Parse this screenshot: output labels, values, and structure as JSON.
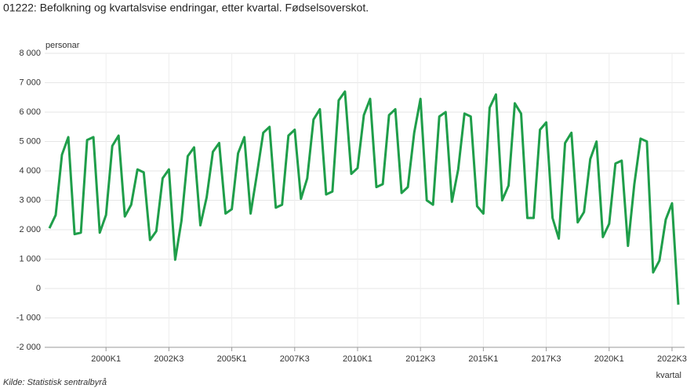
{
  "chart_data": {
    "type": "line",
    "title": "01222: Befolkning og kvartalsvise endringar, etter kvartal. Fødselsoverskot.",
    "y_label": "personar",
    "x_label": "kvartal",
    "source": "Kilde:  Statistisk sentralbyrå",
    "categories": [
      null,
      null,
      null,
      null,
      null,
      null,
      null,
      null,
      null,
      "2000K1",
      null,
      null,
      null,
      null,
      null,
      null,
      null,
      null,
      null,
      "2002K3",
      null,
      null,
      null,
      null,
      null,
      null,
      null,
      null,
      null,
      "2005K1",
      null,
      null,
      null,
      null,
      null,
      null,
      null,
      null,
      null,
      "2007K3",
      null,
      null,
      null,
      null,
      null,
      null,
      null,
      null,
      null,
      "2010K1",
      null,
      null,
      null,
      null,
      null,
      null,
      null,
      null,
      null,
      "2012K3",
      null,
      null,
      null,
      null,
      null,
      null,
      null,
      null,
      null,
      "2015K1",
      null,
      null,
      null,
      null,
      null,
      null,
      null,
      null,
      null,
      "2017K3",
      null,
      null,
      null,
      null,
      null,
      null,
      null,
      null,
      null,
      "2020K1",
      null,
      null,
      null,
      null,
      null,
      null,
      null,
      null,
      null,
      "2022K3",
      null
    ],
    "series": [
      {
        "name": "Fødselsoverskot",
        "color": "#1f9e4a",
        "values": [
          2050,
          2500,
          4550,
          5150,
          1850,
          1900,
          5050,
          5150,
          1900,
          2500,
          4850,
          5200,
          2450,
          2850,
          4050,
          3950,
          1650,
          1950,
          3750,
          4050,
          980,
          2300,
          4500,
          4800,
          2150,
          3100,
          4650,
          4950,
          2550,
          2700,
          4600,
          5150,
          2550,
          3900,
          5300,
          5500,
          2750,
          2850,
          5200,
          5400,
          3050,
          3750,
          5750,
          6100,
          3200,
          3300,
          6400,
          6700,
          3900,
          4100,
          5900,
          6450,
          3450,
          3550,
          5900,
          6100,
          3250,
          3450,
          5300,
          6450,
          3000,
          2850,
          5850,
          6000,
          2950,
          4050,
          5950,
          5850,
          2800,
          2550,
          6150,
          6600,
          3000,
          3500,
          6300,
          5950,
          2400,
          2400,
          5400,
          5650,
          2400,
          1700,
          4950,
          5300,
          2250,
          2600,
          4400,
          5000,
          1750,
          2200,
          4250,
          4350,
          1450,
          3550,
          5100,
          5000,
          550,
          950,
          2350,
          2900,
          -550
        ]
      }
    ],
    "ylim": [
      -2000,
      8000
    ],
    "yticks": [
      {
        "value": -2000,
        "label": "-2 000"
      },
      {
        "value": -1000,
        "label": "-1 000"
      },
      0,
      {
        "value": 1000,
        "label": "1 000"
      },
      {
        "value": 2000,
        "label": "2 000"
      },
      {
        "value": 3000,
        "label": "3 000"
      },
      {
        "value": 4000,
        "label": "4 000"
      },
      {
        "value": 5000,
        "label": "5 000"
      },
      {
        "value": 6000,
        "label": "6 000"
      },
      {
        "value": 7000,
        "label": "7 000"
      },
      {
        "value": 8000,
        "label": "8 000"
      }
    ],
    "grid": true
  }
}
